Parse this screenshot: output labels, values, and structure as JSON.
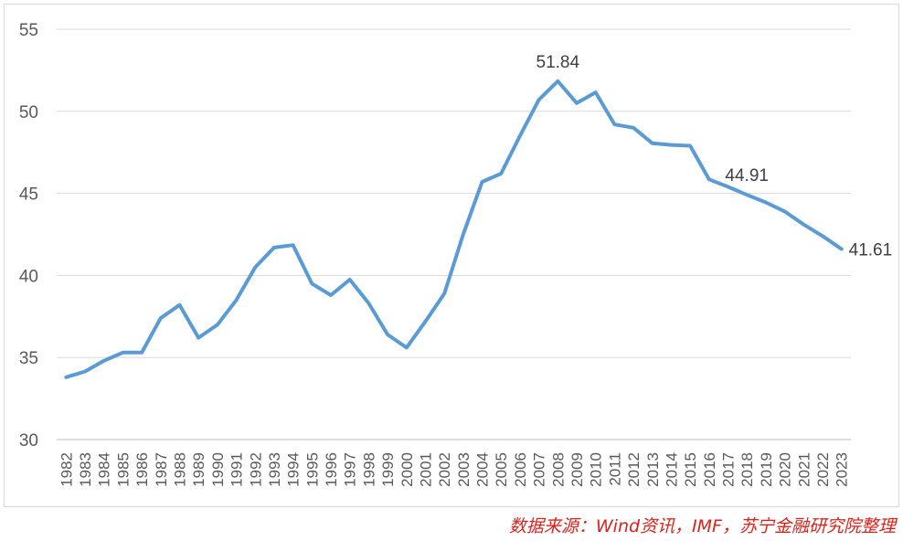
{
  "chart_data": {
    "type": "line",
    "title": "",
    "xlabel": "",
    "ylabel": "",
    "ylim": [
      30,
      55
    ],
    "yticks": [
      30,
      35,
      40,
      45,
      50,
      55
    ],
    "grid": true,
    "legend": "none",
    "line_color": "#5b9bd5",
    "categories": [
      "1982",
      "1983",
      "1984",
      "1985",
      "1986",
      "1987",
      "1988",
      "1989",
      "1990",
      "1991",
      "1992",
      "1993",
      "1994",
      "1995",
      "1996",
      "1997",
      "1998",
      "1999",
      "2000",
      "2001",
      "2002",
      "2003",
      "2004",
      "2005",
      "2006",
      "2007",
      "2008",
      "2009",
      "2010",
      "2011",
      "2012",
      "2013",
      "2014",
      "2015",
      "2016",
      "2017",
      "2018",
      "2019",
      "2020",
      "2021",
      "2022",
      "2023"
    ],
    "series": [
      {
        "values": [
          33.8,
          34.15,
          34.8,
          35.3,
          35.3,
          37.4,
          38.2,
          36.2,
          37.0,
          38.5,
          40.5,
          41.7,
          41.85,
          39.5,
          38.8,
          39.75,
          38.3,
          36.4,
          35.6,
          37.2,
          38.9,
          42.5,
          45.7,
          46.2,
          48.5,
          50.7,
          51.84,
          50.5,
          51.15,
          49.2,
          49.0,
          48.05,
          47.95,
          47.9,
          45.85,
          45.4,
          44.91,
          44.45,
          43.9,
          43.1,
          42.4,
          41.61
        ]
      }
    ],
    "annotations": [
      {
        "category": "2008",
        "text": "51.84"
      },
      {
        "category": "2018",
        "text": "44.91"
      },
      {
        "category": "2023",
        "text": "41.61"
      }
    ]
  },
  "source_note": "数据来源：Wind资讯，IMF，苏宁金融研究院整理"
}
